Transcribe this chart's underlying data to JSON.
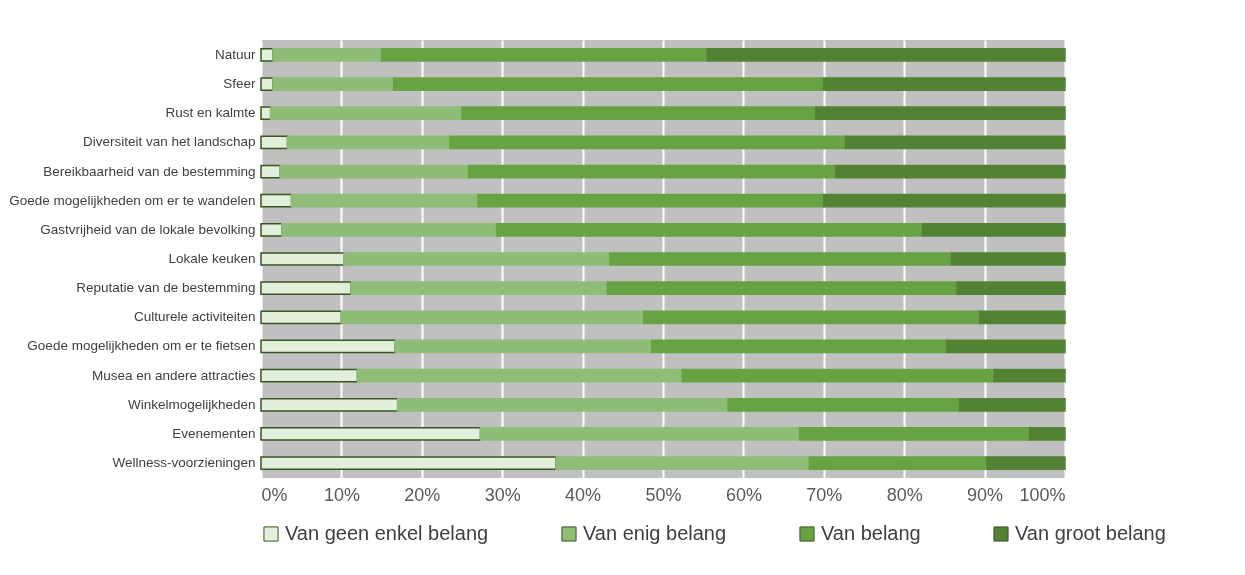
{
  "chart_data": {
    "type": "bar",
    "orientation": "horizontal",
    "stacked": true,
    "categories": [
      "Natuur",
      "Sfeer",
      "Rust en kalmte",
      "Diversiteit van het landschap",
      "Bereikbaarheid van de bestemming",
      "Goede mogelijkheden om er te wandelen",
      "Gastvrijheid van de lokale bevolking",
      "Lokale keuken",
      "Reputatie van de bestemming",
      "Culturele activiteiten",
      "Goede mogelijkheden om er te fietsen",
      "Musea en andere attracties",
      "Winkelmogelijkheden",
      "Evenementen",
      "Wellness-voorzieningen"
    ],
    "series": [
      {
        "name": "Van geen enkel belang",
        "color": "#e2efda",
        "values": [
          1.5,
          1.5,
          1.2,
          3.3,
          2.4,
          3.8,
          2.6,
          10.3,
          11.2,
          10,
          16.7,
          12,
          17,
          27.3,
          36.7
        ]
      },
      {
        "name": "Van enig belang",
        "color": "#8fbc77",
        "values": [
          13.5,
          15,
          23.8,
          20.2,
          23.4,
          23.2,
          26.7,
          33.1,
          31.9,
          37.6,
          31.9,
          40.4,
          41.1,
          39.7,
          31.5
        ]
      },
      {
        "name": "Van belang",
        "color": "#67a343",
        "values": [
          40.5,
          53.5,
          44,
          49.2,
          45.7,
          43,
          53,
          42.5,
          43.5,
          41.8,
          36.7,
          38.8,
          28.8,
          28.6,
          22.1
        ]
      },
      {
        "name": "Van groot belang",
        "color": "#548235",
        "values": [
          44.5,
          30,
          31,
          27.3,
          28.5,
          30,
          17.7,
          14.1,
          13.4,
          10.6,
          14.7,
          8.8,
          13.1,
          4.4,
          9.7
        ]
      }
    ],
    "xlim": [
      0,
      100
    ],
    "xticks": [
      {
        "value": 0,
        "label": "0%"
      },
      {
        "value": 10,
        "label": "10%"
      },
      {
        "value": 20,
        "label": "20%"
      },
      {
        "value": 30,
        "label": "30%"
      },
      {
        "value": 40,
        "label": "40%"
      },
      {
        "value": 50,
        "label": "50%"
      },
      {
        "value": 60,
        "label": "60%"
      },
      {
        "value": 70,
        "label": "70%"
      },
      {
        "value": 80,
        "label": "80%"
      },
      {
        "value": 90,
        "label": "90%"
      },
      {
        "value": 100,
        "label": "100%"
      }
    ],
    "grid": "x",
    "legend": "bottom"
  }
}
